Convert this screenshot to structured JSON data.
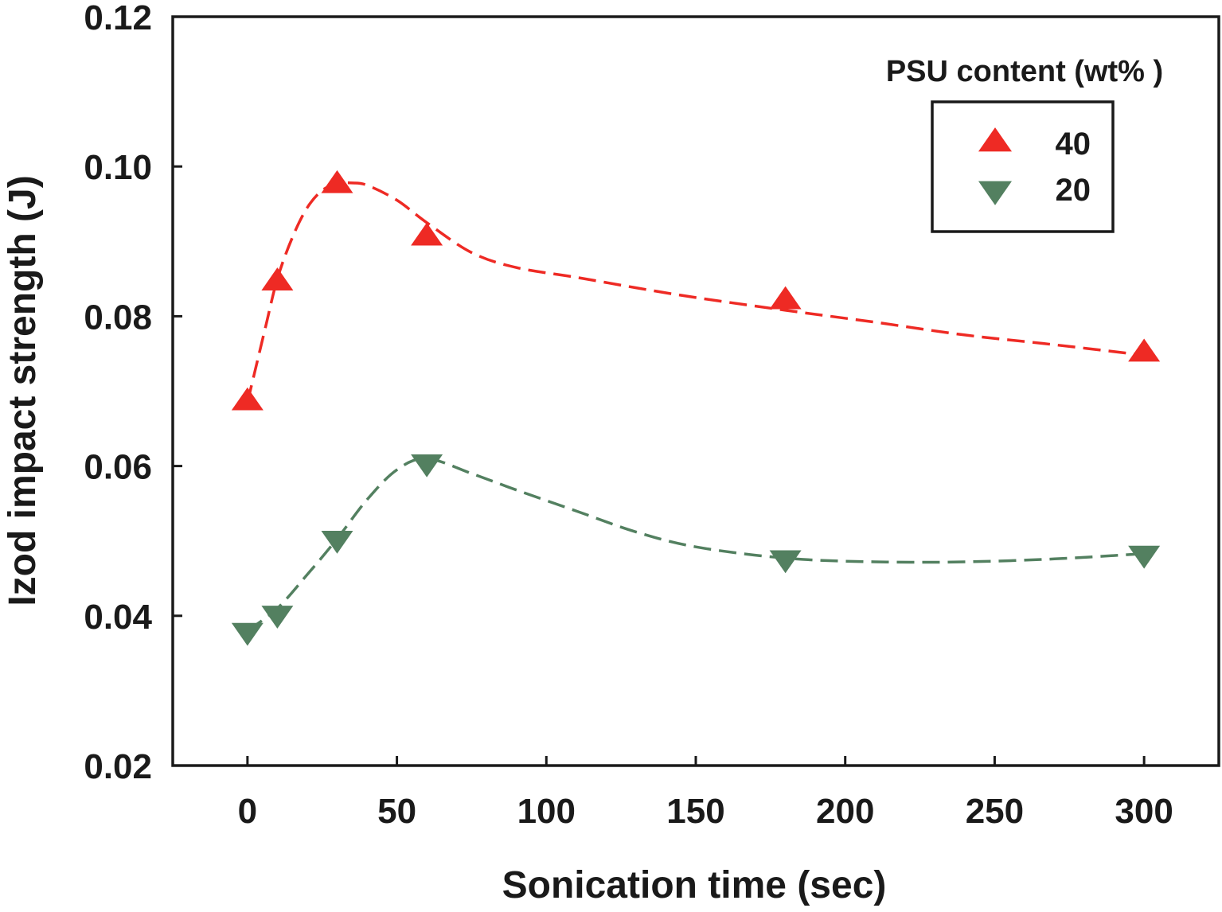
{
  "chart_data": {
    "type": "scatter",
    "xlabel": "Sonication time (sec)",
    "ylabel": "Izod impact strength (J)",
    "xlim": [
      -25,
      325
    ],
    "ylim": [
      0.02,
      0.12
    ],
    "x_ticks": [
      0,
      50,
      100,
      150,
      200,
      250,
      300
    ],
    "x_tick_labels": [
      "0",
      "50",
      "100",
      "150",
      "200",
      "250",
      "300"
    ],
    "y_ticks": [
      0.02,
      0.04,
      0.06,
      0.08,
      0.1,
      0.12
    ],
    "y_tick_labels": [
      "0.02",
      "0.04",
      "0.06",
      "0.08",
      "0.10",
      "0.12"
    ],
    "grid": false,
    "legend": {
      "title": "PSU content (wt% )",
      "placement": "top-right"
    },
    "series": [
      {
        "name": "40",
        "marker": "triangle-up",
        "color": "#ee2a24",
        "line_style": "dashed",
        "x": [
          0,
          10,
          30,
          60,
          180,
          300
        ],
        "y": [
          0.0685,
          0.0845,
          0.0975,
          0.0905,
          0.082,
          0.075
        ],
        "trend": {
          "x": [
            0,
            3,
            6,
            10,
            15,
            20,
            25,
            30,
            35,
            40,
            50,
            60,
            75,
            90,
            110,
            130,
            150,
            180,
            210,
            240,
            270,
            300
          ],
          "y": [
            0.0685,
            0.0735,
            0.0785,
            0.085,
            0.0905,
            0.0945,
            0.0968,
            0.0977,
            0.0978,
            0.0975,
            0.0955,
            0.0925,
            0.0885,
            0.0865,
            0.0852,
            0.0838,
            0.0825,
            0.0808,
            0.0792,
            0.0775,
            0.0762,
            0.0748
          ]
        }
      },
      {
        "name": "20",
        "marker": "triangle-down",
        "color": "#538060",
        "line_style": "dashed",
        "x": [
          0,
          10,
          30,
          60,
          180,
          300
        ],
        "y": [
          0.038,
          0.0403,
          0.0503,
          0.0605,
          0.0477,
          0.0483
        ],
        "trend": {
          "x": [
            0,
            10,
            20,
            30,
            40,
            50,
            60,
            75,
            90,
            110,
            130,
            150,
            180,
            210,
            240,
            270,
            300
          ],
          "y": [
            0.038,
            0.041,
            0.0455,
            0.0503,
            0.0555,
            0.0595,
            0.061,
            0.059,
            0.0568,
            0.054,
            0.0512,
            0.0492,
            0.0477,
            0.0472,
            0.0472,
            0.0476,
            0.0483
          ]
        }
      }
    ]
  }
}
